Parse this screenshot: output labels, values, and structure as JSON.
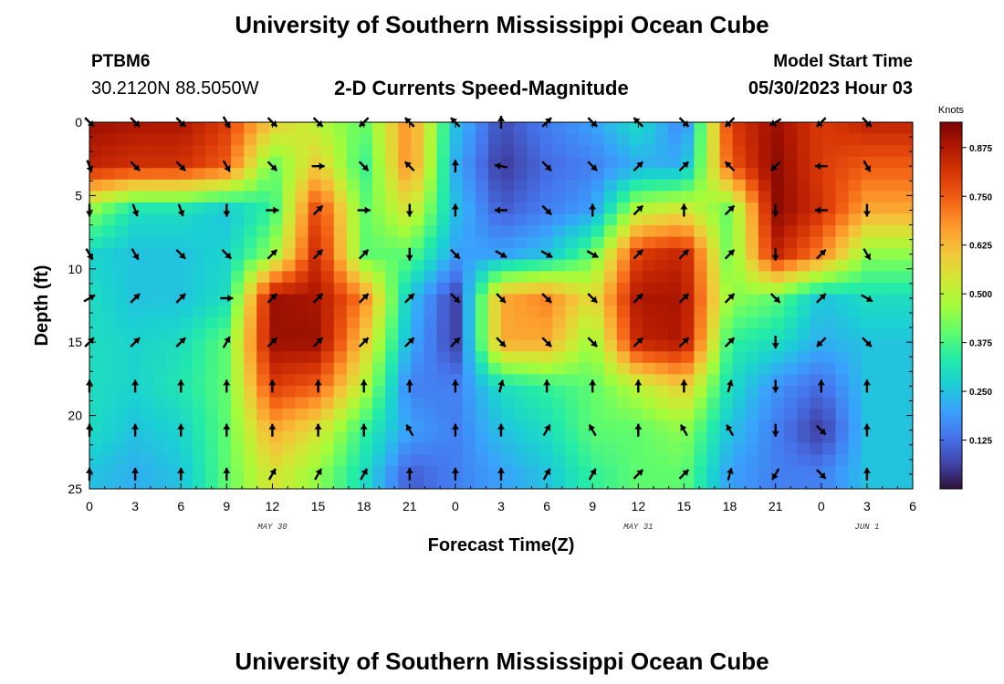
{
  "header": {
    "title": "University of Southern Mississippi Ocean Cube",
    "station": "PTBM6",
    "coords": "30.2120N  88.5050W",
    "subtitle": "2-D Currents Speed-Magnitude",
    "model_start_label": "Model Start Time",
    "model_start_value": "05/30/2023 Hour 03"
  },
  "footer": {
    "title": "University of Southern Mississippi Ocean Cube"
  },
  "colors": {
    "colormap": [
      "#30123b",
      "#4145ab",
      "#4675ed",
      "#39a2fc",
      "#1bcfd4",
      "#24eca6",
      "#61fc6c",
      "#a4fc3b",
      "#d1e834",
      "#f3c63a",
      "#fe9b2d",
      "#f36315",
      "#d93806",
      "#b11901",
      "#7a0403"
    ],
    "arrow": "#000000"
  },
  "chart_data": {
    "type": "heatmap",
    "title": "2-D Currents Speed-Magnitude",
    "xlabel": "Forecast Time(Z)",
    "ylabel": "Depth (ft)",
    "x_hours": [
      0,
      3,
      6,
      9,
      12,
      15,
      18,
      21,
      24,
      27,
      30,
      33,
      36,
      39,
      42,
      45,
      48,
      51
    ],
    "x_tick_labels": [
      "0",
      "3",
      "6",
      "9",
      "12",
      "15",
      "18",
      "21",
      "0",
      "3",
      "6",
      "9",
      "12",
      "15",
      "18",
      "21",
      "0",
      "3",
      "6"
    ],
    "x_tick_hours": [
      0,
      3,
      6,
      9,
      12,
      15,
      18,
      21,
      24,
      27,
      30,
      33,
      36,
      39,
      42,
      45,
      48,
      51,
      54
    ],
    "date_labels": [
      {
        "text": "MAY 30",
        "hour": 12
      },
      {
        "text": "MAY 31",
        "hour": 36
      },
      {
        "text": "JUN 1",
        "hour": 51
      }
    ],
    "xlim": [
      0,
      54
    ],
    "y_depths_ft": [
      0,
      3,
      6,
      9,
      12,
      15,
      18,
      21,
      24
    ],
    "y_tick_labels": [
      "0",
      "5",
      "10",
      "15",
      "20",
      "25"
    ],
    "y_tick_values": [
      0,
      5,
      10,
      15,
      20,
      25
    ],
    "ylim": [
      0,
      25
    ],
    "y_inverted": true,
    "colorbar": {
      "unit": "Knots",
      "range": [
        0,
        0.94
      ],
      "ticks": [
        0.125,
        0.25,
        0.375,
        0.5,
        0.625,
        0.75,
        0.875
      ],
      "tick_labels": [
        "0.125",
        "0.250",
        "0.375",
        "0.500",
        "0.625",
        "0.750",
        "0.875"
      ]
    },
    "speed_knots": [
      [
        0.9,
        0.88,
        0.88,
        0.8,
        0.6,
        0.5,
        0.4,
        0.7,
        0.25,
        0.08,
        0.15,
        0.2,
        0.3,
        0.15,
        0.8,
        0.9,
        0.8,
        0.85
      ],
      [
        0.85,
        0.82,
        0.82,
        0.75,
        0.4,
        0.6,
        0.35,
        0.7,
        0.22,
        0.05,
        0.12,
        0.15,
        0.22,
        0.22,
        0.75,
        0.92,
        0.8,
        0.75
      ],
      [
        0.45,
        0.3,
        0.3,
        0.25,
        0.35,
        0.8,
        0.4,
        0.55,
        0.25,
        0.1,
        0.15,
        0.2,
        0.5,
        0.55,
        0.4,
        0.92,
        0.82,
        0.65
      ],
      [
        0.28,
        0.25,
        0.25,
        0.28,
        0.45,
        0.85,
        0.4,
        0.4,
        0.2,
        0.2,
        0.25,
        0.4,
        0.8,
        0.85,
        0.4,
        0.85,
        0.7,
        0.45
      ],
      [
        0.3,
        0.25,
        0.25,
        0.3,
        0.9,
        0.88,
        0.7,
        0.25,
        0.06,
        0.65,
        0.7,
        0.55,
        0.88,
        0.88,
        0.45,
        0.4,
        0.25,
        0.3
      ],
      [
        0.3,
        0.28,
        0.3,
        0.4,
        0.9,
        0.9,
        0.6,
        0.22,
        0.06,
        0.65,
        0.65,
        0.45,
        0.85,
        0.88,
        0.35,
        0.3,
        0.22,
        0.25
      ],
      [
        0.3,
        0.28,
        0.32,
        0.4,
        0.8,
        0.75,
        0.5,
        0.15,
        0.15,
        0.3,
        0.35,
        0.4,
        0.5,
        0.6,
        0.3,
        0.18,
        0.12,
        0.25
      ],
      [
        0.3,
        0.25,
        0.28,
        0.4,
        0.65,
        0.55,
        0.35,
        0.2,
        0.15,
        0.25,
        0.3,
        0.4,
        0.4,
        0.45,
        0.25,
        0.15,
        0.05,
        0.25
      ],
      [
        0.25,
        0.22,
        0.25,
        0.4,
        0.55,
        0.45,
        0.3,
        0.1,
        0.15,
        0.2,
        0.25,
        0.35,
        0.4,
        0.4,
        0.2,
        0.15,
        0.15,
        0.25
      ]
    ],
    "direction_deg": [
      [
        135,
        135,
        135,
        150,
        135,
        135,
        225,
        315,
        315,
        0,
        45,
        135,
        315,
        135,
        225,
        240,
        225,
        135
      ],
      [
        160,
        135,
        135,
        150,
        135,
        90,
        135,
        315,
        0,
        280,
        135,
        135,
        45,
        45,
        315,
        225,
        270,
        150
      ],
      [
        180,
        160,
        160,
        180,
        90,
        45,
        90,
        180,
        0,
        270,
        135,
        0,
        45,
        0,
        45,
        180,
        270,
        180
      ],
      [
        150,
        150,
        135,
        135,
        45,
        45,
        45,
        180,
        135,
        120,
        120,
        120,
        45,
        45,
        45,
        180,
        45,
        150
      ],
      [
        60,
        45,
        45,
        90,
        45,
        45,
        45,
        45,
        135,
        135,
        135,
        135,
        45,
        45,
        45,
        135,
        45,
        120
      ],
      [
        45,
        45,
        45,
        30,
        45,
        45,
        45,
        45,
        45,
        135,
        135,
        135,
        45,
        45,
        45,
        180,
        225,
        135
      ],
      [
        0,
        0,
        0,
        0,
        0,
        0,
        0,
        0,
        0,
        15,
        0,
        0,
        0,
        0,
        15,
        180,
        0,
        0
      ],
      [
        0,
        0,
        0,
        0,
        0,
        0,
        0,
        330,
        0,
        0,
        30,
        330,
        0,
        330,
        330,
        180,
        135,
        0
      ],
      [
        0,
        0,
        0,
        0,
        30,
        30,
        30,
        0,
        0,
        0,
        30,
        30,
        45,
        45,
        15,
        210,
        135,
        0
      ]
    ]
  }
}
